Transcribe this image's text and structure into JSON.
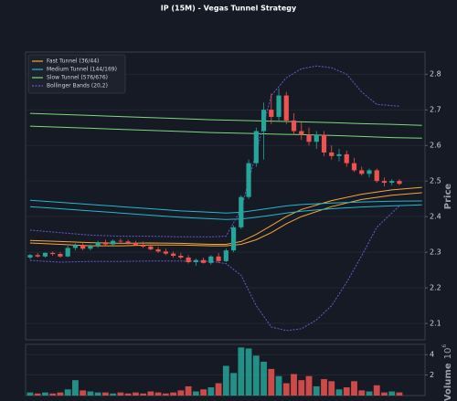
{
  "chart_data": [
    {
      "type": "candlestick",
      "title": "IP (15M) - Vegas Tunnel Strategy",
      "y_label": "Price",
      "x": [
        0,
        1,
        2,
        3,
        4,
        5,
        6,
        7,
        8,
        9,
        10,
        11,
        12,
        13,
        14,
        15,
        16,
        17,
        18,
        19,
        20,
        21,
        22,
        23,
        24,
        25,
        26,
        27,
        28,
        29,
        30,
        31,
        32,
        33,
        34,
        35,
        36,
        37,
        38,
        39,
        40,
        41,
        42,
        43,
        44,
        45,
        46,
        47,
        48,
        49
      ],
      "open": [
        2.285,
        2.292,
        2.288,
        2.298,
        2.295,
        2.288,
        2.312,
        2.32,
        2.31,
        2.318,
        2.328,
        2.322,
        2.332,
        2.33,
        2.326,
        2.32,
        2.316,
        2.308,
        2.302,
        2.296,
        2.29,
        2.285,
        2.272,
        2.278,
        2.27,
        2.288,
        2.275,
        2.305,
        2.37,
        2.455,
        2.55,
        2.64,
        2.7,
        2.68,
        2.74,
        2.67,
        2.64,
        2.63,
        2.61,
        2.63,
        2.58,
        2.57,
        2.575,
        2.55,
        2.53,
        2.52,
        2.53,
        2.5,
        2.495,
        2.5
      ],
      "high": [
        2.295,
        2.298,
        2.3,
        2.302,
        2.3,
        2.318,
        2.325,
        2.325,
        2.322,
        2.332,
        2.335,
        2.336,
        2.338,
        2.335,
        2.332,
        2.33,
        2.322,
        2.315,
        2.31,
        2.302,
        2.298,
        2.292,
        2.282,
        2.285,
        2.292,
        2.298,
        2.31,
        2.375,
        2.46,
        2.56,
        2.65,
        2.72,
        2.745,
        2.76,
        2.75,
        2.69,
        2.665,
        2.65,
        2.64,
        2.64,
        2.6,
        2.59,
        2.585,
        2.565,
        2.54,
        2.535,
        2.535,
        2.51,
        2.505,
        2.505
      ],
      "low": [
        2.28,
        2.285,
        2.285,
        2.29,
        2.285,
        2.286,
        2.305,
        2.305,
        2.305,
        2.312,
        2.318,
        2.318,
        2.325,
        2.322,
        2.318,
        2.312,
        2.305,
        2.298,
        2.292,
        2.285,
        2.28,
        2.268,
        2.262,
        2.268,
        2.265,
        2.27,
        2.272,
        2.3,
        2.365,
        2.45,
        2.54,
        2.56,
        2.66,
        2.67,
        2.66,
        2.63,
        2.615,
        2.6,
        2.59,
        2.57,
        2.56,
        2.555,
        2.54,
        2.525,
        2.515,
        2.51,
        2.495,
        2.485,
        2.488,
        2.488
      ],
      "close": [
        2.292,
        2.288,
        2.298,
        2.295,
        2.288,
        2.312,
        2.32,
        2.31,
        2.318,
        2.328,
        2.322,
        2.332,
        2.33,
        2.326,
        2.32,
        2.316,
        2.308,
        2.302,
        2.296,
        2.29,
        2.285,
        2.272,
        2.278,
        2.27,
        2.288,
        2.275,
        2.305,
        2.37,
        2.455,
        2.55,
        2.64,
        2.7,
        2.68,
        2.74,
        2.67,
        2.64,
        2.63,
        2.61,
        2.63,
        2.58,
        2.57,
        2.575,
        2.55,
        2.53,
        2.52,
        2.53,
        2.5,
        2.495,
        2.5,
        2.492
      ],
      "up_color": "#26a69a",
      "down_color": "#ef5350",
      "xlim": [
        -0.6,
        52.4
      ],
      "ylim": [
        2.054,
        2.862
      ],
      "yticks": [
        2.1,
        2.2,
        2.3,
        2.4,
        2.5,
        2.6,
        2.7,
        2.8
      ],
      "grid": true,
      "legend": "upper left",
      "lines": [
        {
          "name": "Fast Tunnel (36/44)",
          "color": "#f5a63a",
          "dashed": false,
          "x": [
            0,
            4,
            8,
            12,
            16,
            20,
            24,
            26,
            28,
            30,
            32,
            34,
            36,
            40,
            44,
            48,
            52
          ],
          "upper": [
            2.333,
            2.33,
            2.327,
            2.325,
            2.326,
            2.325,
            2.322,
            2.322,
            2.33,
            2.35,
            2.375,
            2.4,
            2.42,
            2.445,
            2.463,
            2.475,
            2.482
          ],
          "lower": [
            2.326,
            2.322,
            2.318,
            2.318,
            2.32,
            2.32,
            2.318,
            2.318,
            2.322,
            2.335,
            2.355,
            2.38,
            2.4,
            2.428,
            2.448,
            2.46,
            2.467
          ]
        },
        {
          "name": "Medium Tunnel (144/169)",
          "color": "#22b8cf",
          "dashed": false,
          "x": [
            0,
            4,
            8,
            12,
            16,
            20,
            24,
            26,
            28,
            30,
            32,
            34,
            36,
            40,
            44,
            48,
            52
          ],
          "upper": [
            2.446,
            2.44,
            2.434,
            2.428,
            2.422,
            2.416,
            2.412,
            2.41,
            2.412,
            2.418,
            2.424,
            2.43,
            2.434,
            2.438,
            2.441,
            2.443,
            2.444
          ],
          "lower": [
            2.428,
            2.422,
            2.416,
            2.41,
            2.404,
            2.398,
            2.394,
            2.392,
            2.393,
            2.398,
            2.404,
            2.41,
            2.415,
            2.422,
            2.427,
            2.43,
            2.433
          ]
        },
        {
          "name": "Slow Tunnel (576/676)",
          "color": "#7ed87e",
          "dashed": false,
          "x": [
            0,
            4,
            8,
            12,
            16,
            20,
            24,
            26,
            28,
            30,
            32,
            34,
            36,
            40,
            44,
            48,
            52
          ],
          "upper": [
            2.69,
            2.687,
            2.684,
            2.681,
            2.678,
            2.675,
            2.672,
            2.671,
            2.67,
            2.669,
            2.668,
            2.667,
            2.666,
            2.664,
            2.661,
            2.659,
            2.656
          ],
          "lower": [
            2.654,
            2.651,
            2.648,
            2.645,
            2.642,
            2.639,
            2.636,
            2.635,
            2.634,
            2.633,
            2.632,
            2.631,
            2.63,
            2.628,
            2.625,
            2.622,
            2.62
          ]
        },
        {
          "name": "Bollinger Bands (20,2)",
          "color": "#6a5acd",
          "dashed": true,
          "x": [
            0,
            4,
            8,
            12,
            16,
            20,
            24,
            26,
            28,
            30,
            32,
            34,
            36,
            38,
            40,
            42,
            44,
            46,
            49
          ],
          "upper": [
            2.362,
            2.355,
            2.348,
            2.345,
            2.345,
            2.343,
            2.343,
            2.345,
            2.42,
            2.58,
            2.74,
            2.79,
            2.815,
            2.823,
            2.818,
            2.8,
            2.75,
            2.715,
            2.71
          ],
          "lower": [
            2.277,
            2.272,
            2.274,
            2.274,
            2.275,
            2.275,
            2.274,
            2.268,
            2.235,
            2.15,
            2.09,
            2.08,
            2.085,
            2.11,
            2.15,
            2.215,
            2.29,
            2.37,
            2.43
          ]
        }
      ]
    },
    {
      "type": "bar",
      "y_label": "Volume",
      "scale_base": "10",
      "scale_exponent": "6",
      "x": [
        0,
        1,
        2,
        3,
        4,
        5,
        6,
        7,
        8,
        9,
        10,
        11,
        12,
        13,
        14,
        15,
        16,
        17,
        18,
        19,
        20,
        21,
        22,
        23,
        24,
        25,
        26,
        27,
        28,
        29,
        30,
        31,
        32,
        33,
        34,
        35,
        36,
        37,
        38,
        39,
        40,
        41,
        42,
        43,
        44,
        45,
        46,
        47,
        48,
        49
      ],
      "values": [
        0.3,
        0.2,
        0.3,
        0.2,
        0.3,
        0.6,
        1.5,
        0.5,
        0.4,
        0.3,
        0.3,
        0.2,
        0.3,
        0.2,
        0.3,
        0.2,
        0.4,
        0.3,
        0.2,
        0.3,
        0.5,
        0.9,
        0.4,
        0.6,
        0.8,
        1.2,
        2.9,
        2.2,
        4.7,
        4.6,
        3.9,
        3.3,
        2.6,
        1.9,
        1.2,
        2.1,
        1.5,
        1.9,
        0.9,
        1.6,
        1.4,
        0.6,
        0.8,
        1.4,
        0.5,
        0.4,
        1.0,
        0.3,
        0.4,
        0.3
      ],
      "ylim": [
        0,
        5
      ],
      "yticks": [
        2,
        4
      ],
      "grid": true
    }
  ]
}
